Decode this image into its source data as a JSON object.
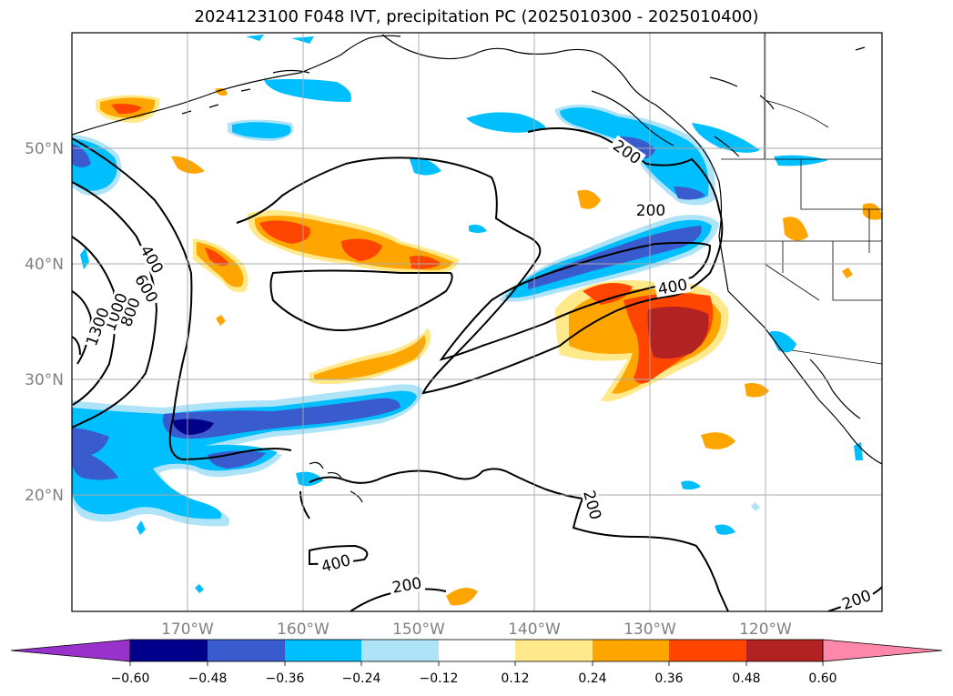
{
  "title": "2024123100 F048 IVT, precipitation PC (2025010300 - 2025010400)",
  "map": {
    "lat_labels": [
      "50°N",
      "40°N",
      "30°N",
      "20°N"
    ],
    "lon_labels": [
      "170°W",
      "160°W",
      "150°W",
      "140°W",
      "130°W",
      "120°W"
    ],
    "ivt_contour_labels": [
      "200",
      "200",
      "200",
      "200",
      "200",
      "400",
      "400",
      "400",
      "600",
      "800",
      "1000",
      "1300"
    ]
  },
  "colorbar": {
    "ticks": [
      "−0.60",
      "−0.48",
      "−0.36",
      "−0.24",
      "−0.12",
      "0.12",
      "0.24",
      "0.36",
      "0.48",
      "0.60"
    ],
    "colors": [
      "#9932cc",
      "#00008b",
      "#3a5bcd",
      "#00bfff",
      "#aee3f8",
      "#ffffff",
      "#ffe98a",
      "#ffa500",
      "#ff4500",
      "#b22222",
      "#ff88aa"
    ]
  }
}
